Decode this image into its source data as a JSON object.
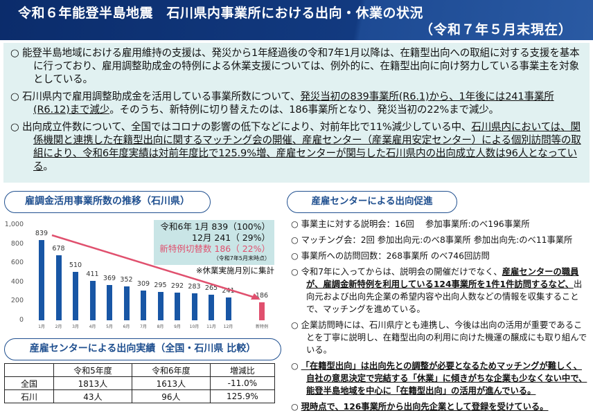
{
  "header": {
    "title": "令和６年能登半島地震　石川県内事業所における出向・休業の状況",
    "subtitle": "（令和７年５月末現在）"
  },
  "summary": [
    {
      "plain1": "○  能登半島地域における雇用維持の支援は、発災から1年経過後の令和7年1月以降は、在籍型出向への取組に対する支援を基本に行っており、雇用調整助成金の特例による休業支援については、例外的に、在籍型出向に向け努力している事業主を対象としている。"
    },
    {
      "plain1": "○  石川県内で雇用調整助成金を活用している事業所数について、",
      "u1": "発災当初の839事業所(R6.1)から、1年後には241事業所(R6.12)まで減少",
      "plain2": "。そのうち、新特例に切り替えたのは、186事業所となり、発災当初の22%まで減少。"
    },
    {
      "plain1": "○  出向成立件数について、全国ではコロナの影響の低下などにより、対前年比で11%減少している中、",
      "u1": "石川県内においては、関係機関と連携した在籍型出向に関するマッチング会の開催、産雇センター（産業雇用安定センター）による個別訪問等の取組により、令和6年度実績は対前年度比で125.9%増、産雇センターが関与した石川県内の出向成立人数は96人となっている",
      "plain2": "。"
    }
  ],
  "chart_section": {
    "title": "雇調金活用事業所数の推移（石川県）"
  },
  "chart_data": {
    "type": "bar",
    "categories": [
      "1月",
      "2月",
      "3月",
      "4月",
      "5月",
      "6月",
      "7月",
      "8月",
      "9月",
      "10月",
      "11月",
      "12月",
      "新特例"
    ],
    "values": [
      839,
      678,
      510,
      411,
      369,
      352,
      309,
      295,
      292,
      283,
      265,
      241,
      186
    ],
    "ylim": [
      0,
      1000
    ],
    "yticks": [
      "0",
      "200",
      "400",
      "600",
      "800",
      "1,000"
    ],
    "colors": {
      "monthly": "#1856a5",
      "new_special": "#e0506e",
      "arrow": "#e0506e"
    },
    "annotation": {
      "line1": "令和6年  1月  839（100%）",
      "line2": "12月  241（  29%）",
      "line3": "新特例切替数  186（  22%）",
      "line4": "（令和7年5月末時点）",
      "note": "※休業実施月別に集計"
    }
  },
  "table_section": {
    "title": "産雇センターによる出向実績（全国・石川県  比較）",
    "headers": [
      "",
      "令和5年度",
      "令和6年度",
      "増減比"
    ],
    "rows": [
      [
        "全国",
        "1813人",
        "1613人",
        "-11.0%"
      ],
      [
        "石川",
        "43人",
        "96人",
        "125.9%"
      ]
    ]
  },
  "promo": {
    "title": "産雇センターによる出向促進",
    "items": [
      {
        "plain1": "○  事業主に対する説明会：16回　 参加事業所:のべ196事業所"
      },
      {
        "plain1": "○  マッチング会：2回  参加出向元:のべ8事業所  参加出向先:のべ11事業所"
      },
      {
        "plain1": "○  事業所への訪問回数：268事業所  のべ746回訪問"
      },
      {
        "plain1": "○  令和7年に入ってからは、説明会の開催だけでなく、",
        "u1": "産雇センターの職員が、雇調金新特例を利用している124事業所を1件1件訪問するなど、",
        "plain2": "出向元および出向先企業の希望内容や出向人数などの情報を収集することで、マッチングを進めている。"
      },
      {
        "plain1": "○  企業訪問時には、石川県庁とも連携し、今後は出向の活用が重要であることを丁寧に説明し、在籍型出向の利用に向けた機運の醸成にも取り組んでいる。"
      },
      {
        "plain1": "○  ",
        "u1": "「在籍型出向」は出向先との調整が必要となるためマッチングが難しく、自社の意思決定で完結する「休業」に傾きがちな企業も少なくない中で、能登半島地域を中心に「在籍型出向」の活用が進んでいる。"
      },
      {
        "plain1": "○  ",
        "u1": "現時点で、126事業所から出向先企業として登録を受けている。"
      }
    ]
  }
}
